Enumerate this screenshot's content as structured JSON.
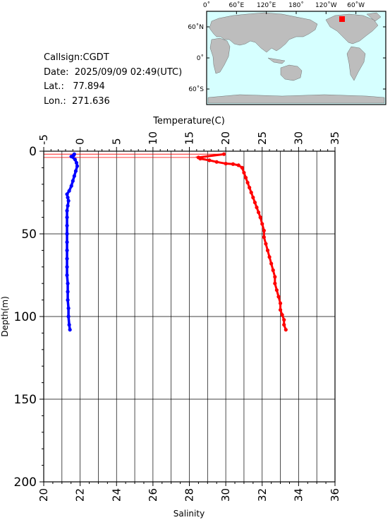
{
  "info": {
    "callsign_label": "Callsign:",
    "callsign": "CGDT",
    "date_label": "Date:",
    "date": "2025/09/09 02:49(UTC)",
    "lat_label": "Lat.:",
    "lat": "77.894",
    "lon_label": "Lon.:",
    "lon": "271.636"
  },
  "map": {
    "top_labels": [
      "0˚",
      "60˚E",
      "120˚E",
      "180˚",
      "120˚W",
      "60˚W"
    ],
    "left_labels": [
      "60˚N",
      "0˚",
      "60˚S"
    ],
    "ocean_color": "#d6ffff",
    "land_color": "#bdbdbd",
    "marker_color": "#ff0000"
  },
  "chart_data": {
    "type": "line",
    "title": "",
    "ylabel": "Depth(m)",
    "ylim": [
      0,
      200
    ],
    "yticks": [
      0,
      50,
      100,
      150,
      200
    ],
    "top_axis": {
      "label": "Temperature(C)",
      "range": [
        -5,
        35
      ],
      "ticks": [
        -5,
        0,
        5,
        10,
        15,
        20,
        25,
        30,
        35
      ]
    },
    "bottom_axis": {
      "label": "Salinity",
      "range": [
        20,
        36
      ],
      "ticks": [
        20,
        22,
        24,
        26,
        28,
        30,
        32,
        34,
        36
      ]
    },
    "series": [
      {
        "axis": "temperature",
        "color": "#0000ff",
        "points": [
          [
            -0.8,
            1.8
          ],
          [
            -0.9,
            2.5
          ],
          [
            -1.2,
            3.2
          ],
          [
            -0.7,
            5
          ],
          [
            -0.5,
            7
          ],
          [
            -0.4,
            9
          ],
          [
            -0.6,
            12
          ],
          [
            -0.8,
            15
          ],
          [
            -1,
            18
          ],
          [
            -1.2,
            21
          ],
          [
            -1.5,
            24
          ],
          [
            -1.8,
            26
          ],
          [
            -1.7,
            28
          ],
          [
            -1.6,
            30
          ],
          [
            -1.7,
            33
          ],
          [
            -1.8,
            36
          ],
          [
            -1.8,
            40
          ],
          [
            -1.8,
            45
          ],
          [
            -1.8,
            50
          ],
          [
            -1.8,
            55
          ],
          [
            -1.8,
            60
          ],
          [
            -1.8,
            65
          ],
          [
            -1.8,
            70
          ],
          [
            -1.8,
            75
          ],
          [
            -1.7,
            80
          ],
          [
            -1.7,
            85
          ],
          [
            -1.7,
            90
          ],
          [
            -1.6,
            95
          ],
          [
            -1.6,
            100
          ],
          [
            -1.5,
            105
          ],
          [
            -1.4,
            108
          ]
        ]
      },
      {
        "axis": "salinity",
        "color": "#ff0000",
        "points": [
          [
            29.9,
            1.8
          ],
          [
            28.5,
            3.8
          ],
          [
            28.6,
            4.5
          ],
          [
            29.1,
            5.5
          ],
          [
            29.5,
            6.5
          ],
          [
            30.0,
            7.5
          ],
          [
            30.4,
            7.8
          ],
          [
            30.7,
            8.5
          ],
          [
            30.9,
            10
          ],
          [
            31.0,
            13
          ],
          [
            31.1,
            16
          ],
          [
            31.2,
            19
          ],
          [
            31.3,
            22
          ],
          [
            31.4,
            25
          ],
          [
            31.5,
            28
          ],
          [
            31.6,
            31
          ],
          [
            31.7,
            34
          ],
          [
            31.8,
            37
          ],
          [
            31.9,
            40
          ],
          [
            32.0,
            44
          ],
          [
            32.1,
            48
          ],
          [
            32.1,
            52
          ],
          [
            32.2,
            56
          ],
          [
            32.3,
            60
          ],
          [
            32.4,
            64
          ],
          [
            32.5,
            68
          ],
          [
            32.6,
            72
          ],
          [
            32.7,
            76
          ],
          [
            32.7,
            80
          ],
          [
            32.8,
            84
          ],
          [
            32.9,
            88
          ],
          [
            33.0,
            92
          ],
          [
            33.0,
            96
          ],
          [
            33.1,
            99
          ],
          [
            33.2,
            102
          ],
          [
            33.2,
            105
          ],
          [
            33.3,
            108
          ]
        ]
      }
    ],
    "surface_lines": [
      [
        29.9,
        1.8
      ],
      [
        28.5,
        3.8
      ]
    ]
  }
}
